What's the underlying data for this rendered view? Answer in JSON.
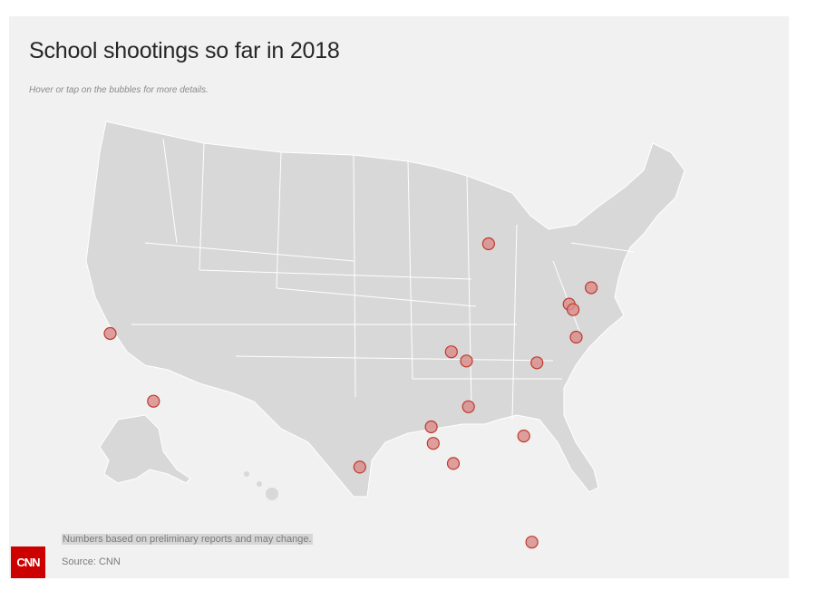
{
  "title": "School shootings so far in 2018",
  "subtitle": "Hover or tap on the bubbles for more details.",
  "footnote": "Numbers based on preliminary reports and may change.",
  "source": "Source: CNN",
  "logo_text": "CNN",
  "colors": {
    "background": "#f1f1f1",
    "land": "#d8d8d8",
    "border": "#ffffff",
    "bubble_fill": "#d98f8f",
    "bubble_stroke": "#c0392b",
    "logo": "#cc0000"
  },
  "locations": [
    {
      "lat": 37.7,
      "lon": -122.2
    },
    {
      "lat": 34.0,
      "lon": -117.9
    },
    {
      "lat": 30.4,
      "lon": -97.4
    },
    {
      "lat": 42.6,
      "lon": -84.6
    },
    {
      "lat": 40.2,
      "lon": -74.4
    },
    {
      "lat": 39.3,
      "lon": -76.6
    },
    {
      "lat": 39.0,
      "lon": -76.2
    },
    {
      "lat": 37.5,
      "lon": -75.9
    },
    {
      "lat": 36.1,
      "lon": -79.8
    },
    {
      "lat": 36.7,
      "lon": -88.3
    },
    {
      "lat": 36.2,
      "lon": -86.8
    },
    {
      "lat": 33.7,
      "lon": -86.6
    },
    {
      "lat": 32.6,
      "lon": -90.3
    },
    {
      "lat": 31.7,
      "lon": -90.1
    },
    {
      "lat": 30.6,
      "lon": -88.1
    },
    {
      "lat": 32.1,
      "lon": -81.1
    },
    {
      "lat": 26.3,
      "lon": -80.3
    }
  ]
}
